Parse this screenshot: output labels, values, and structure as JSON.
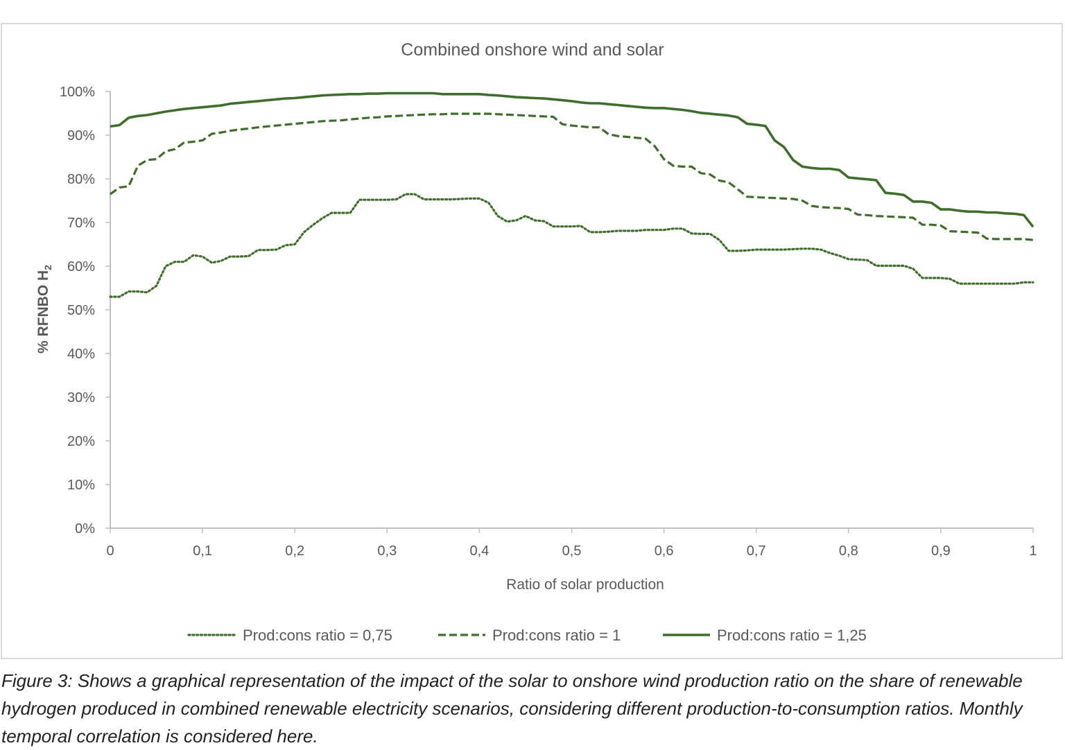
{
  "chart_data": {
    "type": "line",
    "title": "Combined onshore wind and solar",
    "xlabel": "Ratio of solar production",
    "ylabel": "% RFNBO H",
    "ylabel_subscript": "2",
    "xlim": [
      0,
      1
    ],
    "ylim": [
      0,
      100
    ],
    "x_ticks": [
      0,
      0.1,
      0.2,
      0.3,
      0.4,
      0.5,
      0.6,
      0.7,
      0.8,
      0.9,
      1
    ],
    "x_tick_labels": [
      "0",
      "0,1",
      "0,2",
      "0,3",
      "0,4",
      "0,5",
      "0,6",
      "0,7",
      "0,8",
      "0,9",
      "1"
    ],
    "y_ticks": [
      0,
      10,
      20,
      30,
      40,
      50,
      60,
      70,
      80,
      90,
      100
    ],
    "y_tick_labels": [
      "0%",
      "10%",
      "20%",
      "30%",
      "40%",
      "50%",
      "60%",
      "70%",
      "80%",
      "90%",
      "100%"
    ],
    "legend_position": "bottom",
    "series": [
      {
        "name": "Prod:cons ratio = 0,75",
        "style": "dotted",
        "color": "#3f6d2c",
        "x": [
          0,
          0.01,
          0.02,
          0.03,
          0.04,
          0.05,
          0.06,
          0.07,
          0.08,
          0.09,
          0.1,
          0.11,
          0.12,
          0.13,
          0.14,
          0.15,
          0.16,
          0.17,
          0.18,
          0.19,
          0.2,
          0.21,
          0.22,
          0.23,
          0.24,
          0.25,
          0.26,
          0.27,
          0.28,
          0.29,
          0.3,
          0.31,
          0.32,
          0.33,
          0.34,
          0.35,
          0.36,
          0.37,
          0.38,
          0.39,
          0.4,
          0.41,
          0.42,
          0.43,
          0.44,
          0.45,
          0.46,
          0.47,
          0.48,
          0.49,
          0.5,
          0.51,
          0.52,
          0.53,
          0.54,
          0.55,
          0.56,
          0.57,
          0.58,
          0.59,
          0.6,
          0.61,
          0.62,
          0.63,
          0.64,
          0.65,
          0.66,
          0.67,
          0.68,
          0.69,
          0.7,
          0.71,
          0.72,
          0.73,
          0.74,
          0.75,
          0.76,
          0.77,
          0.78,
          0.79,
          0.8,
          0.81,
          0.82,
          0.83,
          0.84,
          0.85,
          0.86,
          0.87,
          0.88,
          0.89,
          0.9,
          0.91,
          0.92,
          0.93,
          0.94,
          0.95,
          0.96,
          0.97,
          0.98,
          0.99,
          1
        ],
        "values": [
          53.0,
          53.0,
          54.2,
          54.2,
          54.0,
          55.5,
          60.0,
          61.0,
          61.0,
          62.5,
          62.2,
          60.8,
          61.2,
          62.2,
          62.2,
          62.3,
          63.7,
          63.7,
          63.8,
          64.8,
          65.0,
          67.8,
          69.5,
          71.0,
          72.2,
          72.2,
          72.2,
          75.2,
          75.2,
          75.2,
          75.2,
          75.3,
          76.5,
          76.5,
          75.3,
          75.3,
          75.3,
          75.3,
          75.4,
          75.5,
          75.5,
          74.5,
          71.5,
          70.2,
          70.5,
          71.5,
          70.5,
          70.3,
          69.1,
          69.1,
          69.1,
          69.2,
          67.8,
          67.8,
          67.9,
          68.1,
          68.1,
          68.1,
          68.3,
          68.3,
          68.3,
          68.6,
          68.6,
          67.5,
          67.4,
          67.4,
          66.0,
          63.5,
          63.5,
          63.6,
          63.8,
          63.8,
          63.8,
          63.8,
          63.9,
          64.0,
          64.0,
          63.8,
          63.0,
          62.4,
          61.6,
          61.5,
          61.4,
          60.1,
          60.1,
          60.1,
          60.1,
          59.4,
          57.3,
          57.3,
          57.3,
          57.1,
          56.0,
          56.0,
          56.0,
          56.0,
          56.0,
          56.0,
          56.0,
          56.3,
          56.3
        ]
      },
      {
        "name": "Prod:cons ratio = 1",
        "style": "dashed",
        "color": "#3f6d2c",
        "x": [
          0,
          0.01,
          0.02,
          0.03,
          0.04,
          0.05,
          0.06,
          0.07,
          0.08,
          0.09,
          0.1,
          0.11,
          0.12,
          0.13,
          0.14,
          0.15,
          0.16,
          0.17,
          0.18,
          0.19,
          0.2,
          0.21,
          0.22,
          0.23,
          0.24,
          0.25,
          0.26,
          0.27,
          0.28,
          0.29,
          0.3,
          0.31,
          0.32,
          0.33,
          0.34,
          0.35,
          0.36,
          0.37,
          0.38,
          0.39,
          0.4,
          0.41,
          0.42,
          0.43,
          0.44,
          0.45,
          0.46,
          0.47,
          0.48,
          0.49,
          0.5,
          0.51,
          0.52,
          0.53,
          0.54,
          0.55,
          0.56,
          0.57,
          0.58,
          0.59,
          0.6,
          0.61,
          0.62,
          0.63,
          0.64,
          0.65,
          0.66,
          0.67,
          0.68,
          0.69,
          0.7,
          0.71,
          0.72,
          0.73,
          0.74,
          0.75,
          0.76,
          0.77,
          0.78,
          0.79,
          0.8,
          0.81,
          0.82,
          0.83,
          0.84,
          0.85,
          0.86,
          0.87,
          0.88,
          0.89,
          0.9,
          0.91,
          0.92,
          0.93,
          0.94,
          0.95,
          0.96,
          0.97,
          0.98,
          0.99,
          1
        ],
        "values": [
          76.5,
          78.0,
          78.3,
          83.0,
          84.3,
          84.5,
          86.3,
          86.8,
          88.3,
          88.5,
          88.8,
          90.3,
          90.6,
          91.0,
          91.3,
          91.5,
          91.8,
          92.0,
          92.2,
          92.4,
          92.6,
          92.8,
          93.0,
          93.2,
          93.3,
          93.4,
          93.6,
          93.8,
          94.0,
          94.1,
          94.3,
          94.4,
          94.5,
          94.6,
          94.7,
          94.8,
          94.8,
          94.9,
          94.9,
          94.9,
          94.9,
          94.9,
          94.8,
          94.7,
          94.6,
          94.5,
          94.4,
          94.3,
          94.2,
          92.5,
          92.2,
          92.0,
          91.8,
          91.8,
          90.2,
          89.8,
          89.6,
          89.4,
          89.2,
          87.5,
          84.5,
          83.0,
          82.8,
          82.8,
          81.3,
          81.0,
          79.6,
          79.2,
          77.6,
          75.9,
          75.8,
          75.7,
          75.6,
          75.5,
          75.4,
          75.0,
          73.8,
          73.5,
          73.4,
          73.3,
          73.1,
          71.8,
          71.7,
          71.5,
          71.4,
          71.3,
          71.2,
          71.1,
          69.5,
          69.5,
          69.3,
          68.0,
          67.9,
          67.8,
          67.7,
          66.3,
          66.2,
          66.2,
          66.2,
          66.2,
          66.0
        ]
      },
      {
        "name": "Prod:cons ratio = 1,25",
        "style": "solid",
        "color": "#3f6d2c",
        "x": [
          0,
          0.01,
          0.02,
          0.03,
          0.04,
          0.05,
          0.06,
          0.07,
          0.08,
          0.09,
          0.1,
          0.11,
          0.12,
          0.13,
          0.14,
          0.15,
          0.16,
          0.17,
          0.18,
          0.19,
          0.2,
          0.21,
          0.22,
          0.23,
          0.24,
          0.25,
          0.26,
          0.27,
          0.28,
          0.29,
          0.3,
          0.31,
          0.32,
          0.33,
          0.34,
          0.35,
          0.36,
          0.37,
          0.38,
          0.39,
          0.4,
          0.41,
          0.42,
          0.43,
          0.44,
          0.45,
          0.46,
          0.47,
          0.48,
          0.49,
          0.5,
          0.51,
          0.52,
          0.53,
          0.54,
          0.55,
          0.56,
          0.57,
          0.58,
          0.59,
          0.6,
          0.61,
          0.62,
          0.63,
          0.64,
          0.65,
          0.66,
          0.67,
          0.68,
          0.69,
          0.7,
          0.71,
          0.72,
          0.73,
          0.74,
          0.75,
          0.76,
          0.77,
          0.78,
          0.79,
          0.8,
          0.81,
          0.82,
          0.83,
          0.84,
          0.85,
          0.86,
          0.87,
          0.88,
          0.89,
          0.9,
          0.91,
          0.92,
          0.93,
          0.94,
          0.95,
          0.96,
          0.97,
          0.98,
          0.99,
          1
        ],
        "values": [
          92.0,
          92.3,
          94.0,
          94.4,
          94.6,
          95.0,
          95.4,
          95.7,
          96.0,
          96.2,
          96.4,
          96.6,
          96.8,
          97.2,
          97.4,
          97.6,
          97.8,
          98.0,
          98.2,
          98.4,
          98.5,
          98.7,
          98.9,
          99.1,
          99.2,
          99.3,
          99.4,
          99.4,
          99.5,
          99.5,
          99.6,
          99.6,
          99.6,
          99.6,
          99.6,
          99.6,
          99.4,
          99.4,
          99.4,
          99.4,
          99.4,
          99.2,
          99.1,
          98.9,
          98.7,
          98.6,
          98.5,
          98.4,
          98.2,
          98.0,
          97.8,
          97.5,
          97.3,
          97.3,
          97.1,
          96.9,
          96.7,
          96.5,
          96.3,
          96.2,
          96.2,
          96.0,
          95.8,
          95.5,
          95.1,
          94.9,
          94.7,
          94.5,
          94.1,
          92.6,
          92.4,
          92.1,
          88.8,
          87.3,
          84.3,
          82.8,
          82.5,
          82.3,
          82.3,
          82.0,
          80.3,
          80.1,
          79.9,
          79.7,
          76.8,
          76.6,
          76.3,
          74.8,
          74.8,
          74.5,
          73.0,
          73.0,
          72.7,
          72.5,
          72.5,
          72.3,
          72.3,
          72.1,
          72.0,
          71.7,
          69.0
        ]
      }
    ]
  },
  "caption": {
    "text": "Figure 3: Shows a graphical representation of the impact of the solar to onshore wind production ratio on the share of renewable hydrogen produced in combined renewable electricity scenarios, considering different production-to-consumption ratios. Monthly temporal correlation is considered here."
  }
}
